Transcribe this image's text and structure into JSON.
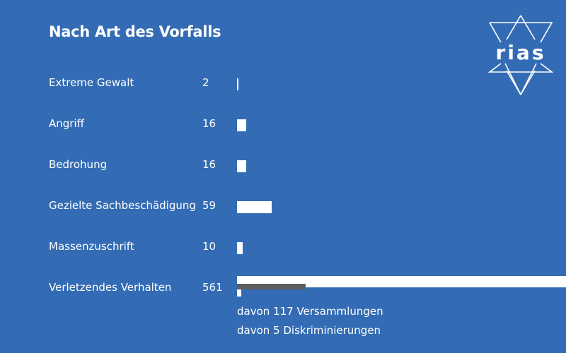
{
  "logo": {
    "text": "rias"
  },
  "colors": {
    "background": "#336cb4",
    "bar": "#ffffff",
    "sub_bar_versammlungen": "#5d5c60",
    "sub_bar_diskriminierungen": "#ffffff"
  },
  "chart_data": {
    "type": "bar",
    "title": "Nach Art des Vorfalls",
    "orientation": "horizontal",
    "categories": [
      "Extreme Gewalt",
      "Angriff",
      "Bedrohung",
      "Gezielte Sachbeschädigung",
      "Massenzuschrift",
      "Verletzendes Verhalten"
    ],
    "values": [
      2,
      16,
      16,
      59,
      10,
      561
    ],
    "value_labels": [
      "2",
      "16",
      "16",
      "59",
      "10",
      "561"
    ],
    "sub_values": {
      "category": "Verletzendes Verhalten",
      "items": [
        {
          "label": "davon 117 Versammlungen",
          "value": 117
        },
        {
          "label": "davon 5 Diskriminierungen",
          "value": 5
        }
      ]
    },
    "xlabel": "",
    "ylabel": "",
    "grid": false,
    "legend": "none"
  }
}
